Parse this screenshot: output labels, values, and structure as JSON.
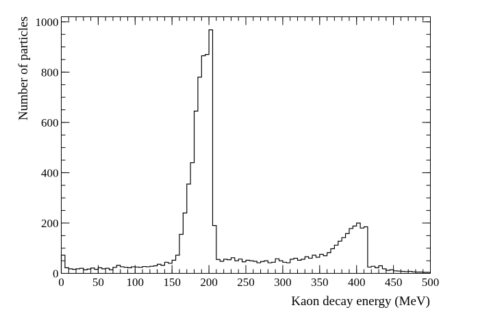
{
  "chart_data": {
    "type": "histogram",
    "xlabel": "Kaon decay energy (MeV)",
    "ylabel": "Number of particles",
    "xlim": [
      0,
      500
    ],
    "ylim": [
      0,
      1020
    ],
    "x_major_ticks": [
      0,
      50,
      100,
      150,
      200,
      250,
      300,
      350,
      400,
      450,
      500
    ],
    "y_major_ticks": [
      0,
      200,
      400,
      600,
      800,
      1000
    ],
    "x_minor_step": 10,
    "y_minor_step": 50,
    "grid": false,
    "legend": "none",
    "line_color": "#000000",
    "bin_width": 5,
    "bin_starts": [
      0,
      5,
      10,
      15,
      20,
      25,
      30,
      35,
      40,
      45,
      50,
      55,
      60,
      65,
      70,
      75,
      80,
      85,
      90,
      95,
      100,
      105,
      110,
      115,
      120,
      125,
      130,
      135,
      140,
      145,
      150,
      155,
      160,
      165,
      170,
      175,
      180,
      185,
      190,
      195,
      200,
      205,
      210,
      215,
      220,
      225,
      230,
      235,
      240,
      245,
      250,
      255,
      260,
      265,
      270,
      275,
      280,
      285,
      290,
      295,
      300,
      305,
      310,
      315,
      320,
      325,
      330,
      335,
      340,
      345,
      350,
      355,
      360,
      365,
      370,
      375,
      380,
      385,
      390,
      395,
      400,
      405,
      410,
      415,
      420,
      425,
      430,
      435,
      440,
      445,
      450,
      455,
      460,
      465,
      470,
      475,
      480,
      485,
      490,
      495
    ],
    "counts": [
      72,
      22,
      18,
      16,
      18,
      20,
      14,
      17,
      21,
      16,
      22,
      18,
      20,
      14,
      24,
      32,
      26,
      24,
      22,
      26,
      25,
      24,
      27,
      26,
      28,
      30,
      36,
      32,
      44,
      40,
      52,
      72,
      155,
      240,
      355,
      440,
      645,
      780,
      865,
      870,
      968,
      190,
      55,
      48,
      56,
      54,
      62,
      50,
      57,
      46,
      52,
      50,
      48,
      42,
      47,
      50,
      42,
      44,
      58,
      50,
      44,
      42,
      56,
      60,
      52,
      56,
      66,
      60,
      72,
      64,
      76,
      70,
      82,
      98,
      112,
      128,
      142,
      158,
      178,
      188,
      200,
      180,
      185,
      25,
      28,
      22,
      30,
      18,
      12,
      14,
      10,
      9,
      8,
      7,
      8,
      6,
      5,
      5,
      4,
      4
    ]
  }
}
